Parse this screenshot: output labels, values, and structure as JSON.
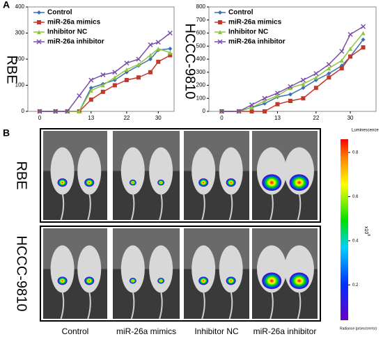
{
  "chart_data": [
    {
      "type": "line",
      "title": "RBE",
      "x": [
        0,
        4,
        7,
        10,
        13,
        16,
        19,
        22,
        25,
        28,
        30,
        33
      ],
      "xlim": [
        -3,
        34
      ],
      "xticks": [
        0,
        13,
        22,
        30
      ],
      "ylim": [
        0,
        400
      ],
      "yticks": [
        0,
        100,
        200,
        300,
        400
      ],
      "legend": "top-left",
      "series": [
        {
          "name": "Control",
          "color": "#3a6fb5",
          "marker": "diamond",
          "values": [
            0,
            0,
            0,
            0,
            90,
            105,
            120,
            150,
            175,
            200,
            235,
            240
          ]
        },
        {
          "name": "miR-26a mimics",
          "color": "#c0392b",
          "marker": "square",
          "values": [
            0,
            0,
            0,
            0,
            45,
            75,
            100,
            120,
            130,
            150,
            190,
            215
          ]
        },
        {
          "name": "Inhibitor NC",
          "color": "#8dc63f",
          "marker": "triangle",
          "values": [
            0,
            0,
            0,
            0,
            80,
            100,
            130,
            160,
            180,
            215,
            240,
            225
          ]
        },
        {
          "name": "miR-26a inhibitor",
          "color": "#7b4fa8",
          "marker": "x",
          "values": [
            0,
            0,
            0,
            60,
            120,
            140,
            150,
            185,
            200,
            255,
            265,
            300
          ]
        }
      ]
    },
    {
      "type": "line",
      "title": "HCCC-9810",
      "x": [
        0,
        4,
        7,
        10,
        13,
        16,
        19,
        22,
        25,
        28,
        30,
        33
      ],
      "xlim": [
        -3,
        36
      ],
      "xticks": [
        0,
        13,
        22,
        30
      ],
      "ylim": [
        0,
        800
      ],
      "yticks": [
        0,
        100,
        200,
        300,
        400,
        500,
        600,
        700,
        800
      ],
      "legend": "top-left",
      "series": [
        {
          "name": "Control",
          "color": "#3a6fb5",
          "marker": "diamond",
          "values": [
            0,
            0,
            30,
            60,
            110,
            130,
            180,
            240,
            290,
            350,
            420,
            550
          ]
        },
        {
          "name": "miR-26a mimics",
          "color": "#c0392b",
          "marker": "square",
          "values": [
            0,
            0,
            0,
            0,
            55,
            80,
            100,
            180,
            260,
            330,
            420,
            490
          ]
        },
        {
          "name": "Inhibitor NC",
          "color": "#8dc63f",
          "marker": "triangle",
          "values": [
            0,
            0,
            30,
            80,
            120,
            180,
            210,
            260,
            330,
            390,
            480,
            600
          ]
        },
        {
          "name": "miR-26a inhibitor",
          "color": "#7b4fa8",
          "marker": "x",
          "values": [
            0,
            0,
            50,
            100,
            140,
            190,
            240,
            290,
            360,
            460,
            590,
            650
          ]
        }
      ]
    }
  ],
  "panels": [
    "A",
    "B"
  ],
  "panel_b": {
    "rows": [
      "RBE",
      "HCCC-9810"
    ],
    "groups": [
      "Control",
      "miR-26a mimics",
      "Inhibitor NC",
      "miR-26a inhibitor"
    ],
    "colorbar": {
      "title": "Luminescence",
      "range": [
        0.04,
        0.86
      ],
      "ticks": [
        0.2,
        0.4,
        0.6,
        0.8
      ],
      "multiplier": "x10",
      "exponent": "8",
      "unit": "Radiance (p/sec/cm²/sr)"
    }
  }
}
